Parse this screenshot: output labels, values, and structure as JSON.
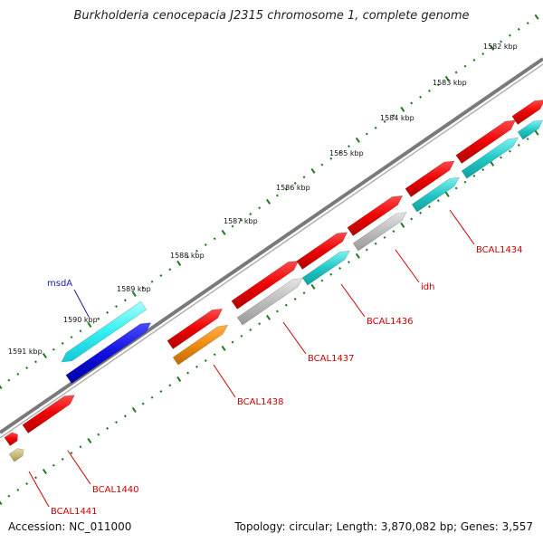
{
  "title": "Burkholderia cenocepacia J2315 chromosome 1, complete genome",
  "accession": "Accession: NC_011000",
  "topology": "Topology: circular; Length: 3,870,082 bp; Genes: 3,557",
  "colors": {
    "backbone": "#7a7a7a",
    "tick": "#1e7a1e",
    "label_red": "#cc0000",
    "label_blue": "#1a1ab0"
  },
  "ticks": [
    {
      "label": "1582 kbp"
    },
    {
      "label": "1583 kbp"
    },
    {
      "label": "1584 kbp"
    },
    {
      "label": "1585 kbp"
    },
    {
      "label": "1586 kbp"
    },
    {
      "label": "1587 kbp"
    },
    {
      "label": "1588 kbp"
    },
    {
      "label": "1589 kbp"
    },
    {
      "label": "1590 kbp"
    },
    {
      "label": "1591 kbp"
    }
  ],
  "gene_labels": [
    {
      "text": "BCAL1434"
    },
    {
      "text": "idh"
    },
    {
      "text": "BCAL1436"
    },
    {
      "text": "BCAL1437"
    },
    {
      "text": "BCAL1438"
    },
    {
      "text": "msdA"
    },
    {
      "text": "BCAL1440"
    },
    {
      "text": "BCAL1441"
    }
  ]
}
